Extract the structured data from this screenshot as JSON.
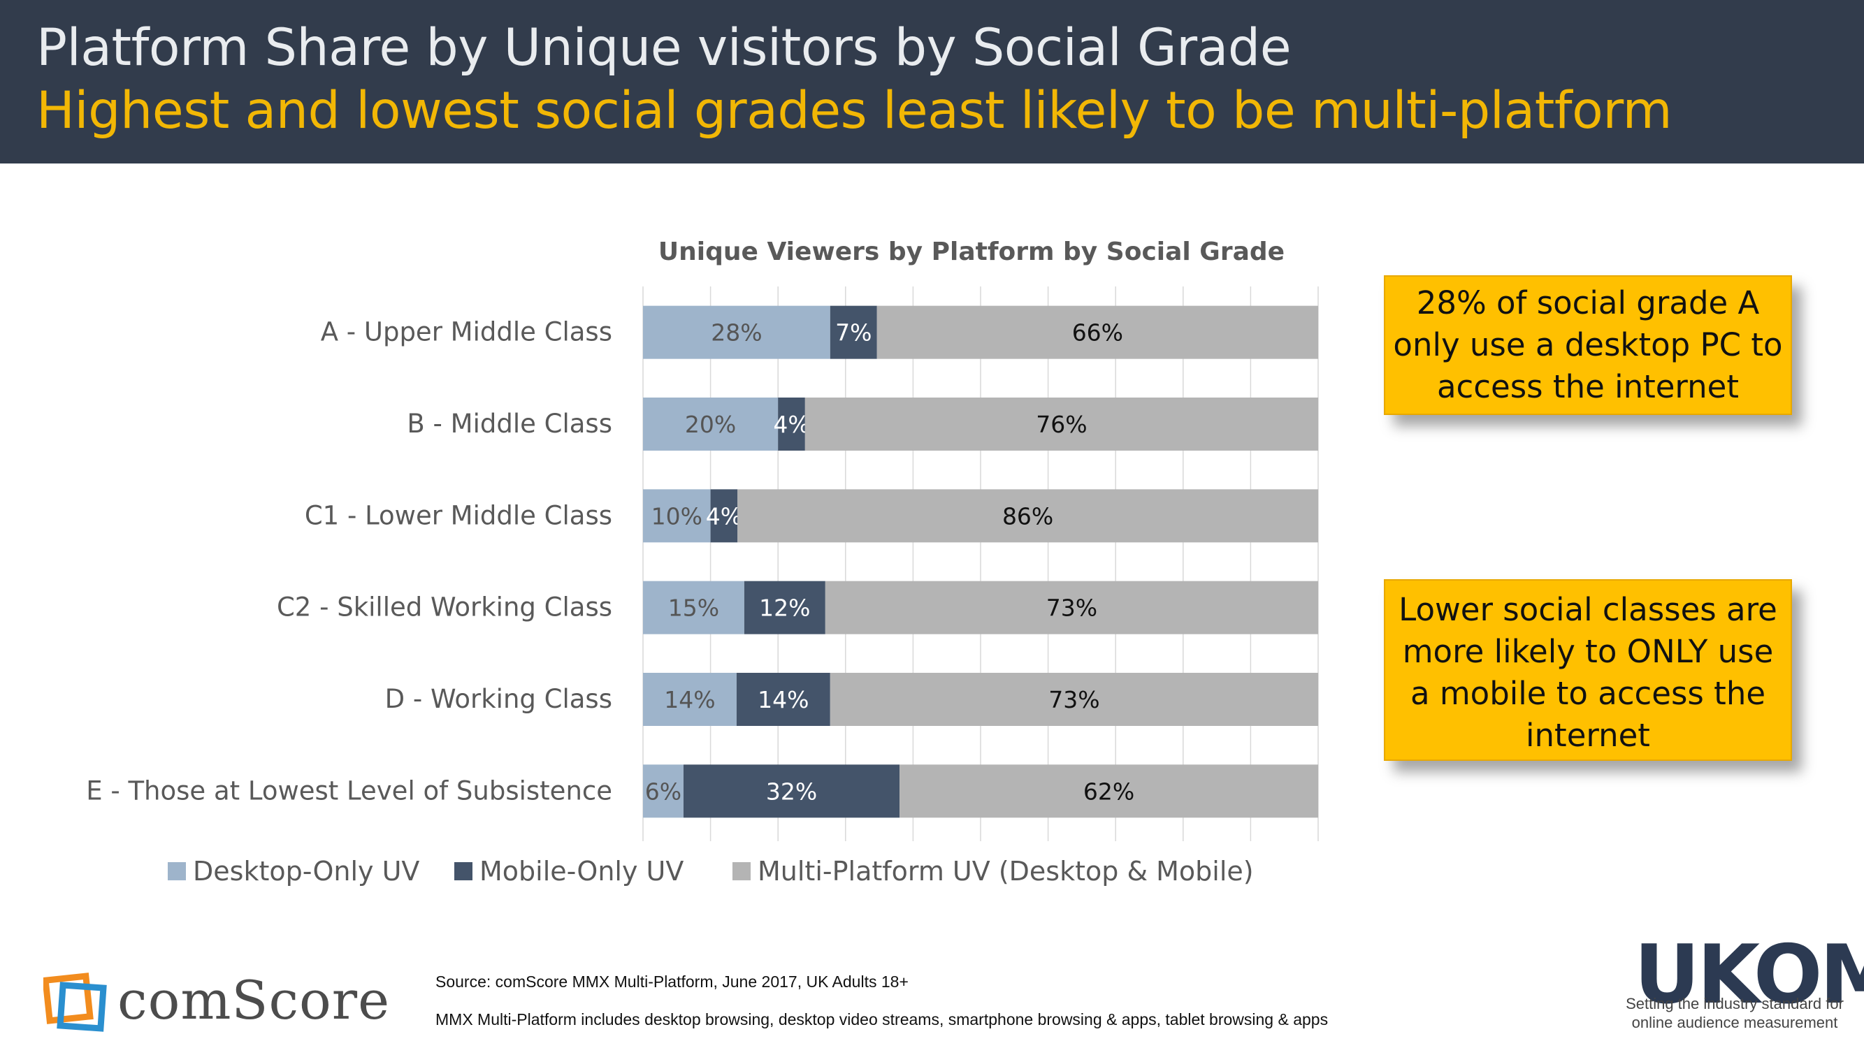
{
  "header": {
    "title": "Platform Share by Unique visitors by Social Grade",
    "subtitle": "Highest and lowest social grades least likely to be multi-platform"
  },
  "colors": {
    "desktop": "#9eb4cb",
    "mobile": "#44546a",
    "multi": "#b4b4b4",
    "header_bg": "#323c4c",
    "subtitle": "#f2b705",
    "callout_bg": "#ffc000"
  },
  "chart_data": {
    "type": "bar",
    "orientation": "horizontal-stacked",
    "title": "Unique Viewers by Platform by Social Grade",
    "categories": [
      "A - Upper Middle Class",
      "B - Middle Class",
      "C1 - Lower Middle Class",
      "C2 - Skilled Working Class",
      "D - Working Class",
      "E - Those at Lowest Level of Subsistence"
    ],
    "series": [
      {
        "name": "Desktop-Only UV",
        "values": [
          28,
          20,
          10,
          15,
          14,
          6
        ],
        "labels": [
          "28%",
          "20%",
          "10%",
          "15%",
          "14%",
          "6%"
        ]
      },
      {
        "name": "Mobile-Only UV",
        "values": [
          7,
          4,
          4,
          12,
          14,
          32
        ],
        "labels": [
          "7%",
          "4%",
          "4%",
          "12%",
          "14%",
          "32%"
        ]
      },
      {
        "name": "Multi-Platform UV (Desktop & Mobile)",
        "values": [
          66,
          76,
          86,
          73,
          73,
          62
        ],
        "labels": [
          "66%",
          "76%",
          "86%",
          "73%",
          "73%",
          "62%"
        ]
      }
    ],
    "xlim": [
      0,
      100
    ],
    "grid": true,
    "legend": "bottom"
  },
  "callouts": [
    {
      "text": "28% of social grade A only use a desktop PC to access the internet"
    },
    {
      "text": "Lower social classes are more likely to ONLY use a mobile to access the internet"
    }
  ],
  "footer": {
    "source": "Source: comScore MMX Multi-Platform, June 2017, UK Adults 18+",
    "note": "MMX Multi-Platform includes desktop browsing, desktop video streams, smartphone browsing & apps, tablet browsing & apps",
    "brand": "comScore",
    "ukom_word": "UKOM",
    "ukom_tagline_1": "Setting the industry standard for",
    "ukom_tagline_2": "online audience measurement"
  }
}
